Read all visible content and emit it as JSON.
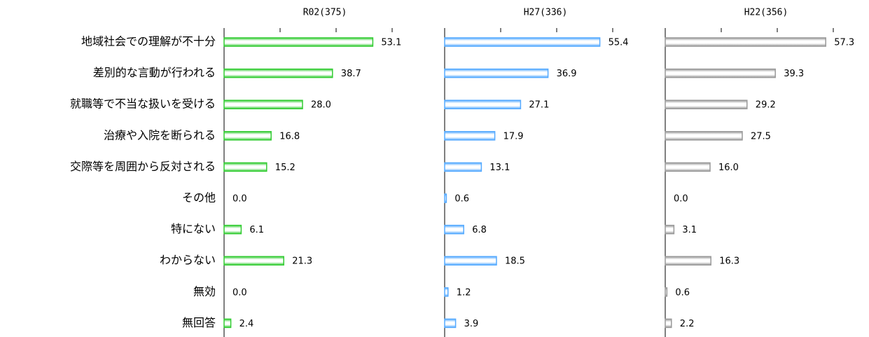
{
  "chart_data": {
    "type": "bar",
    "orientation": "horizontal",
    "categories": [
      "地域社会での理解が不十分",
      "差別的な言動が行われる",
      "就職等で不当な扱いを受ける",
      "治療や入院を断られる",
      "交際等を周囲から反対される",
      "その他",
      "特にない",
      "わからない",
      "無効",
      "無回答"
    ],
    "series": [
      {
        "name": "R02(375)",
        "color": "#33cc33",
        "values": [
          53.1,
          38.7,
          28.0,
          16.8,
          15.2,
          0.0,
          6.1,
          21.3,
          0.0,
          2.4
        ],
        "value_labels": [
          "53.1",
          "38.7",
          "28.0",
          "16.8",
          "15.2",
          "0.0",
          "6.1",
          "21.3",
          "0.0",
          "2.4"
        ]
      },
      {
        "name": "H27(336)",
        "color": "#55aaff",
        "values": [
          55.4,
          36.9,
          27.1,
          17.9,
          13.1,
          0.6,
          6.8,
          18.5,
          1.2,
          3.9
        ],
        "value_labels": [
          "55.4",
          "36.9",
          "27.1",
          "17.9",
          "13.1",
          "0.6",
          "6.8",
          "18.5",
          "1.2",
          "3.9"
        ]
      },
      {
        "name": "H22(356)",
        "color": "#999999",
        "values": [
          57.3,
          39.3,
          29.2,
          27.5,
          16.0,
          0.0,
          3.1,
          16.3,
          0.6,
          2.2
        ],
        "value_labels": [
          "57.3",
          "39.3",
          "29.2",
          "27.5",
          "16.0",
          "0.0",
          "3.1",
          "16.3",
          "0.6",
          "2.2"
        ]
      }
    ],
    "xlim": [
      0,
      72
    ],
    "xticks": [
      0,
      20,
      40,
      60
    ]
  }
}
